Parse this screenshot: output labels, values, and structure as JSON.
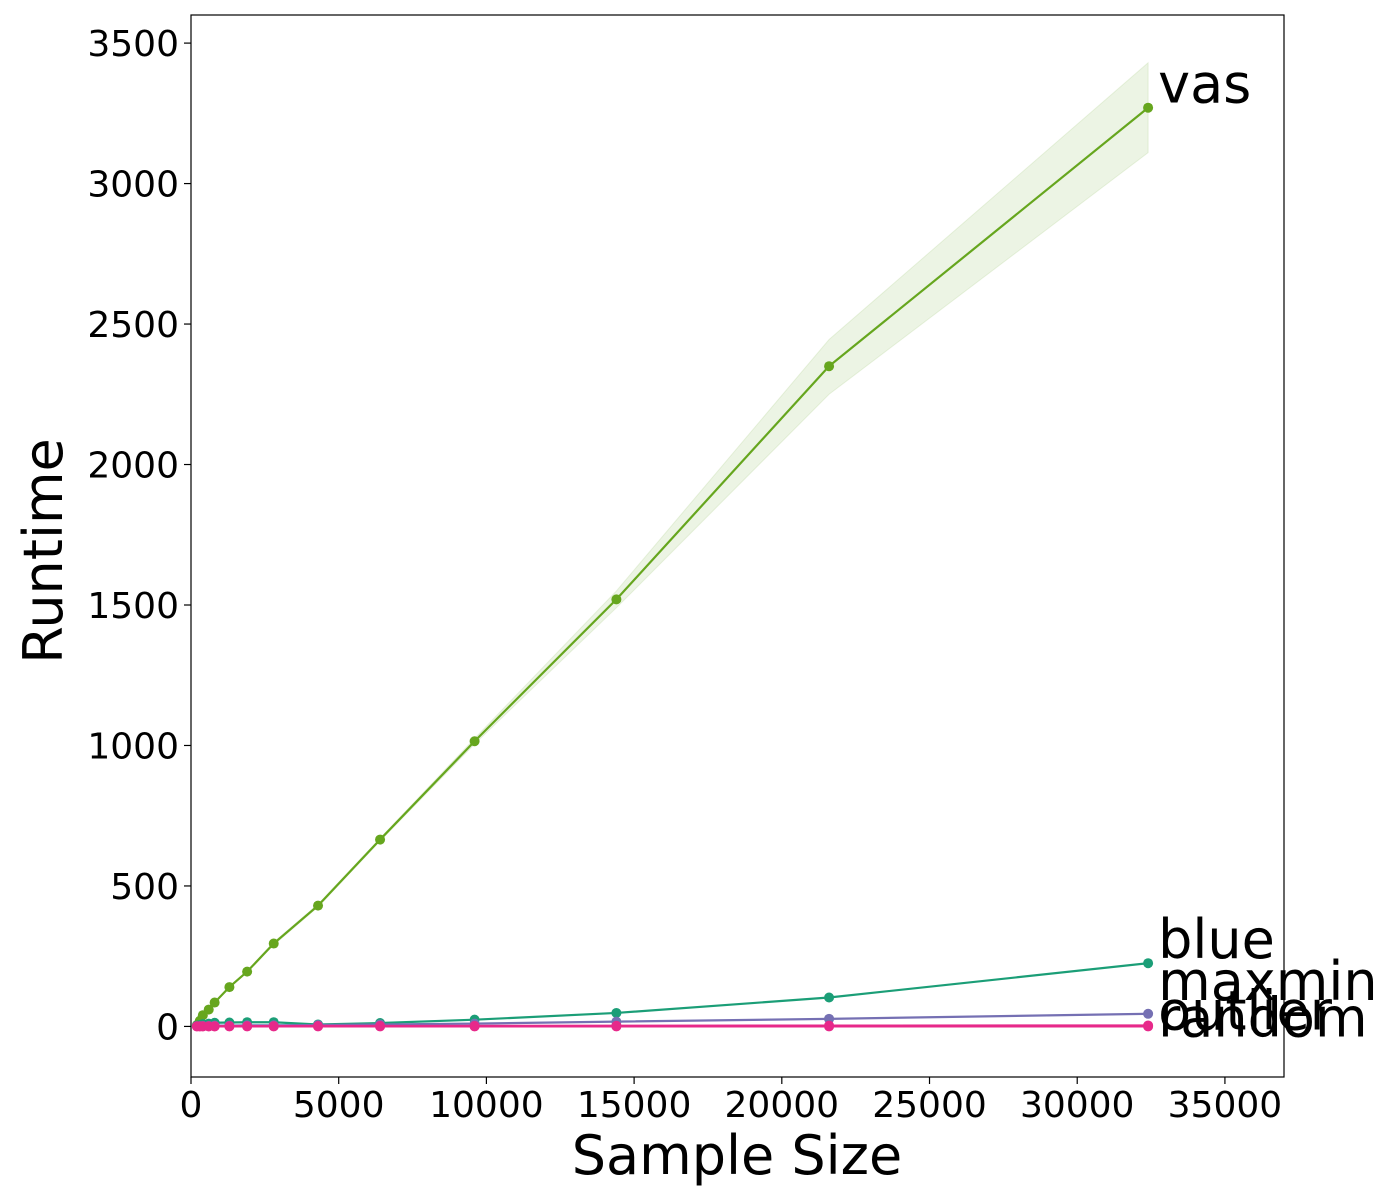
{
  "chart_data": {
    "type": "line",
    "title": "",
    "xlabel": "Sample Size",
    "ylabel": "Runtime",
    "xlim": [
      0,
      37000
    ],
    "ylim": [
      -180,
      3600
    ],
    "xticks": [
      0,
      5000,
      10000,
      15000,
      20000,
      25000,
      30000,
      35000
    ],
    "yticks": [
      0,
      500,
      1000,
      1500,
      2000,
      2500,
      3000,
      3500
    ],
    "grid": false,
    "legend": "none (labels at line ends)",
    "series": [
      {
        "name": "vas",
        "color": "#66a61e",
        "band_color": "#66a61e",
        "x": [
          200,
          300,
          400,
          600,
          800,
          1300,
          1900,
          2800,
          4300,
          6400,
          9600,
          14400,
          21600,
          32400
        ],
        "y": [
          5,
          20,
          40,
          60,
          85,
          140,
          195,
          295,
          430,
          665,
          1015,
          1520,
          2350,
          3270
        ],
        "lower": [
          5,
          20,
          40,
          60,
          85,
          138,
          192,
          290,
          425,
          660,
          1005,
          1490,
          2250,
          3110
        ],
        "upper": [
          5,
          20,
          40,
          60,
          85,
          142,
          198,
          300,
          435,
          670,
          1025,
          1550,
          2445,
          3430
        ]
      },
      {
        "name": "blue",
        "color": "#1b9e77",
        "x": [
          200,
          300,
          400,
          600,
          800,
          1300,
          1900,
          2800,
          4300,
          6400,
          9600,
          14400,
          21600,
          32400
        ],
        "y": [
          3,
          5,
          8,
          10,
          13,
          14,
          15,
          15,
          7,
          12,
          24,
          48,
          103,
          225
        ]
      },
      {
        "name": "maxmin",
        "color": "#7570b3",
        "x": [
          200,
          300,
          400,
          600,
          800,
          1300,
          1900,
          2800,
          4300,
          6400,
          9600,
          14400,
          21600,
          32400
        ],
        "y": [
          1,
          1,
          2,
          2,
          3,
          3,
          4,
          4,
          5,
          7,
          10,
          17,
          27,
          45
        ]
      },
      {
        "name": "outlier",
        "color": "#e7298a",
        "x": [
          200,
          300,
          400,
          600,
          800,
          1300,
          1900,
          2800,
          4300,
          6400,
          9600,
          14400,
          21600,
          32400
        ],
        "y": [
          0.5,
          0.5,
          0.6,
          0.7,
          0.8,
          1,
          1,
          1.2,
          1.5,
          1.8,
          2,
          2.5,
          3,
          3.5
        ]
      },
      {
        "name": "random",
        "color": "#e7298a",
        "x": [
          200,
          300,
          400,
          600,
          800,
          1300,
          1900,
          2800,
          4300,
          6400,
          9600,
          14400,
          21600,
          32400
        ],
        "y": [
          0,
          0,
          0,
          0,
          0,
          0,
          0,
          0,
          0,
          0,
          0,
          0,
          0,
          0
        ]
      }
    ]
  }
}
